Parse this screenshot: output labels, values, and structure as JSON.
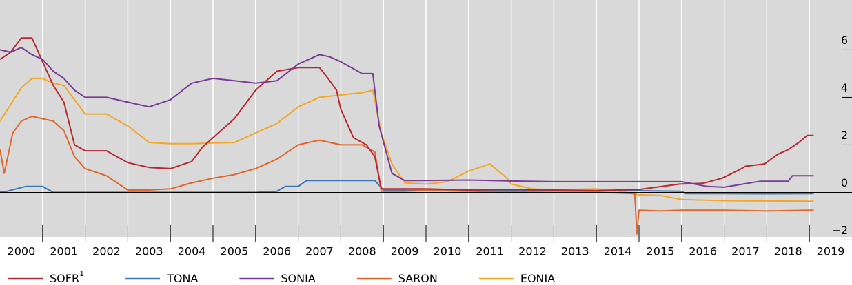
{
  "chart_data": {
    "type": "line",
    "xlim": [
      2000,
      2020
    ],
    "ylim": [
      -1.9,
      8.1
    ],
    "yticks": [
      {
        "value": -2,
        "label": "−2"
      },
      0,
      2,
      4,
      6
    ],
    "xticks": [
      {
        "value": 2000.5,
        "label": "2000"
      },
      {
        "value": 2001.5,
        "label": "2001"
      },
      {
        "value": 2002.5,
        "label": "2002"
      },
      {
        "value": 2003.5,
        "label": "2003"
      },
      {
        "value": 2004.5,
        "label": "2004"
      },
      {
        "value": 2005.5,
        "label": "2005"
      },
      {
        "value": 2006.5,
        "label": "2006"
      },
      {
        "value": 2007.5,
        "label": "2007"
      },
      {
        "value": 2008.5,
        "label": "2008"
      },
      {
        "value": 2009.5,
        "label": "2009"
      },
      {
        "value": 2010.5,
        "label": "2010"
      },
      {
        "value": 2011.5,
        "label": "2011"
      },
      {
        "value": 2012.5,
        "label": "2012"
      },
      {
        "value": 2013.5,
        "label": "2013"
      },
      {
        "value": 2014.5,
        "label": "2014"
      },
      {
        "value": 2015.5,
        "label": "2015"
      },
      {
        "value": 2016.5,
        "label": "2016"
      },
      {
        "value": 2017.5,
        "label": "2017"
      },
      {
        "value": 2018.5,
        "label": "2018"
      },
      {
        "value": 2019.5,
        "label": "2019"
      }
    ],
    "x_boundaries": [
      2001,
      2002,
      2003,
      2004,
      2005,
      2006,
      2007,
      2008,
      2009,
      2010,
      2011,
      2012,
      2013,
      2014,
      2015,
      2016,
      2017,
      2018,
      2019
    ],
    "grid": true,
    "series": [
      {
        "name": "SOFR",
        "footnote": "1",
        "color": "#b8292f",
        "x": [
          2000,
          2000.25,
          2000.5,
          2000.75,
          2001,
          2001.25,
          2001.5,
          2001.75,
          2002,
          2002.5,
          2003,
          2003.5,
          2004,
          2004.5,
          2004.75,
          2005,
          2005.5,
          2006,
          2006.5,
          2007,
          2007.5,
          2007.7,
          2007.9,
          2008,
          2008.3,
          2008.6,
          2008.8,
          2008.95,
          2009.5,
          2010,
          2011,
          2012,
          2013,
          2014,
          2015,
          2015.95,
          2016.5,
          2016.95,
          2017.3,
          2017.5,
          2017.95,
          2018.25,
          2018.5,
          2018.75,
          2018.95,
          2019.1
        ],
        "values": [
          5.6,
          5.9,
          6.5,
          6.5,
          5.5,
          4.5,
          3.8,
          2.0,
          1.75,
          1.75,
          1.25,
          1.05,
          1.0,
          1.3,
          1.9,
          2.3,
          3.1,
          4.3,
          5.1,
          5.25,
          5.25,
          4.8,
          4.3,
          3.5,
          2.3,
          2.0,
          1.5,
          0.15,
          0.15,
          0.15,
          0.1,
          0.12,
          0.1,
          0.08,
          0.12,
          0.35,
          0.38,
          0.6,
          0.9,
          1.1,
          1.2,
          1.6,
          1.8,
          2.1,
          2.4,
          2.4
        ]
      },
      {
        "name": "TONA",
        "color": "#3a76b8",
        "x": [
          2000,
          2000.1,
          2000.6,
          2001,
          2001.25,
          2002,
          2003,
          2004,
          2005,
          2006,
          2006.5,
          2006.7,
          2007,
          2007.2,
          2008,
          2008.8,
          2009,
          2010,
          2011,
          2012,
          2013,
          2014,
          2015,
          2016,
          2016.1,
          2017,
          2018,
          2019,
          2019.1
        ],
        "values": [
          0.02,
          0.02,
          0.25,
          0.25,
          0.0,
          0.0,
          0.0,
          0.0,
          0.0,
          0.0,
          0.05,
          0.25,
          0.25,
          0.5,
          0.5,
          0.5,
          0.1,
          0.09,
          0.08,
          0.08,
          0.07,
          0.06,
          0.07,
          0.05,
          -0.05,
          -0.05,
          -0.06,
          -0.05,
          -0.05
        ]
      },
      {
        "name": "SONIA",
        "color": "#7b3a96",
        "x": [
          2000,
          2000.25,
          2000.5,
          2000.75,
          2001,
          2001.25,
          2001.5,
          2001.75,
          2002,
          2002.5,
          2003,
          2003.5,
          2004,
          2004.5,
          2005,
          2005.5,
          2006,
          2006.5,
          2007,
          2007.5,
          2007.75,
          2008,
          2008.5,
          2008.75,
          2008.9,
          2009.2,
          2009.5,
          2010,
          2011,
          2012,
          2013,
          2014,
          2015,
          2016,
          2016.6,
          2017,
          2017.85,
          2018.5,
          2018.6,
          2019.1
        ],
        "values": [
          6.0,
          5.9,
          6.1,
          5.8,
          5.6,
          5.1,
          4.8,
          4.3,
          4.0,
          4.0,
          3.8,
          3.6,
          3.9,
          4.6,
          4.8,
          4.7,
          4.6,
          4.7,
          5.4,
          5.8,
          5.7,
          5.5,
          5.0,
          5.0,
          2.8,
          0.8,
          0.5,
          0.5,
          0.52,
          0.48,
          0.45,
          0.45,
          0.45,
          0.45,
          0.25,
          0.22,
          0.47,
          0.47,
          0.7,
          0.7
        ]
      },
      {
        "name": "SARON",
        "color": "#e2662a",
        "x": [
          2000,
          2000.1,
          2000.3,
          2000.5,
          2000.75,
          2001,
          2001.25,
          2001.5,
          2001.75,
          2002,
          2002.5,
          2003,
          2003.5,
          2004,
          2004.5,
          2005,
          2005.5,
          2006,
          2006.5,
          2007,
          2007.5,
          2008,
          2008.5,
          2008.8,
          2008.95,
          2009.5,
          2010,
          2011,
          2012,
          2013,
          2014,
          2014.9,
          2014.95,
          2015.0,
          2015.5,
          2016,
          2017,
          2018,
          2019,
          2019.1
        ],
        "values": [
          1.8,
          0.8,
          2.5,
          3.0,
          3.2,
          3.1,
          3.0,
          2.6,
          1.5,
          1.0,
          0.7,
          0.1,
          0.1,
          0.15,
          0.4,
          0.6,
          0.75,
          1.0,
          1.4,
          2.0,
          2.2,
          2.0,
          2.0,
          1.7,
          0.05,
          0.05,
          0.08,
          0.05,
          0.02,
          0.0,
          0.0,
          -0.05,
          -1.75,
          -0.75,
          -0.78,
          -0.75,
          -0.75,
          -0.78,
          -0.75,
          -0.75
        ]
      },
      {
        "name": "EONIA",
        "color": "#f4a623",
        "x": [
          2000,
          2000.25,
          2000.5,
          2000.75,
          2001,
          2001.25,
          2001.5,
          2001.75,
          2002,
          2002.5,
          2003,
          2003.5,
          2004,
          2004.5,
          2005,
          2005.5,
          2006,
          2006.5,
          2007,
          2007.5,
          2008,
          2008.5,
          2008.75,
          2008.95,
          2009.2,
          2009.5,
          2010,
          2010.5,
          2011,
          2011.5,
          2011.9,
          2012,
          2012.5,
          2013,
          2014,
          2014.5,
          2015,
          2015.5,
          2016,
          2017,
          2018,
          2019,
          2019.1
        ],
        "values": [
          3.0,
          3.7,
          4.4,
          4.8,
          4.8,
          4.6,
          4.5,
          3.9,
          3.3,
          3.3,
          2.8,
          2.1,
          2.05,
          2.05,
          2.08,
          2.1,
          2.5,
          2.9,
          3.6,
          4.0,
          4.1,
          4.2,
          4.3,
          2.5,
          1.2,
          0.4,
          0.35,
          0.45,
          0.9,
          1.2,
          0.6,
          0.35,
          0.15,
          0.1,
          0.15,
          0.05,
          -0.1,
          -0.13,
          -0.3,
          -0.35,
          -0.36,
          -0.37,
          -0.37
        ]
      }
    ]
  }
}
